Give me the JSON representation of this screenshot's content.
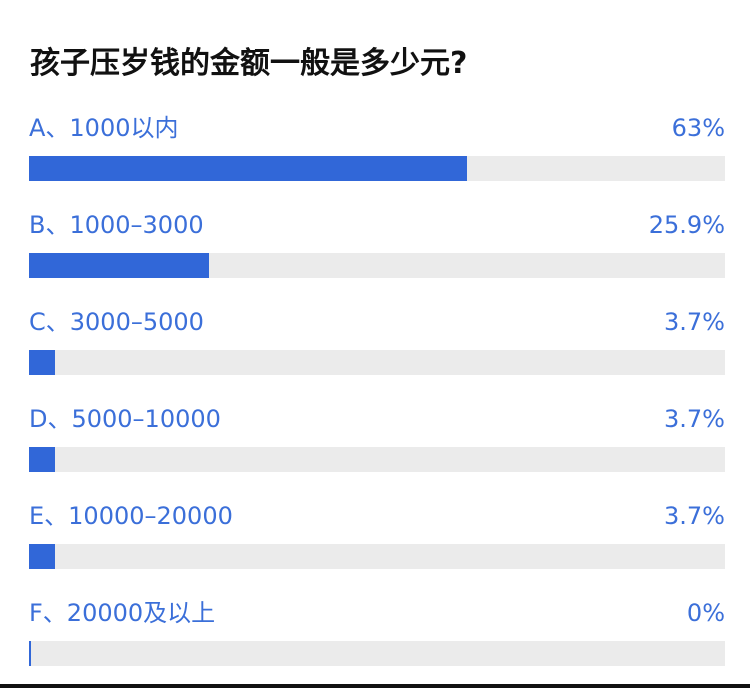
{
  "poll": {
    "title": "孩子压岁钱的金额一般是多少元?",
    "accent_color": "#3167d8",
    "track_color": "#ebebeb",
    "options": [
      {
        "label": "A、1000以内",
        "percent_text": "63%",
        "percent": 63
      },
      {
        "label": "B、1000–3000",
        "percent_text": "25.9%",
        "percent": 25.9
      },
      {
        "label": "C、3000–5000",
        "percent_text": "3.7%",
        "percent": 3.7
      },
      {
        "label": "D、5000–10000",
        "percent_text": "3.7%",
        "percent": 3.7
      },
      {
        "label": "E、10000–20000",
        "percent_text": "3.7%",
        "percent": 3.7
      },
      {
        "label": "F、20000及以上",
        "percent_text": "0%",
        "percent": 0
      }
    ]
  }
}
